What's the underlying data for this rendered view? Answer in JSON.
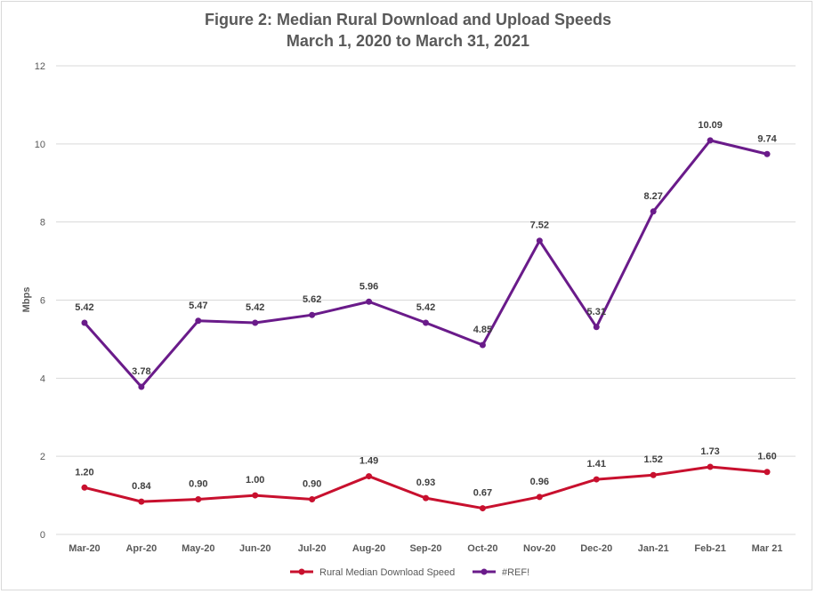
{
  "chart_data": {
    "type": "line",
    "title": "Figure 2: Median Rural Download and Upload Speeds",
    "subtitle": "March 1, 2020 to March 31, 2021",
    "xlabel": "",
    "ylabel": "Mbps",
    "ylim": [
      0,
      12
    ],
    "yticks": [
      0,
      2,
      4,
      6,
      8,
      10,
      12
    ],
    "grid": true,
    "legend_position": "bottom",
    "categories": [
      "Mar-20",
      "Apr-20",
      "May-20",
      "Jun-20",
      "Jul-20",
      "Aug-20",
      "Sep-20",
      "Oct-20",
      "Nov-20",
      "Dec-20",
      "Jan-21",
      "Feb-21",
      "Mar 21"
    ],
    "series": [
      {
        "name": "Rural Median Download Speed",
        "color": "#c8102e",
        "values": [
          1.2,
          0.84,
          0.9,
          1.0,
          0.9,
          1.49,
          0.93,
          0.67,
          0.96,
          1.41,
          1.52,
          1.73,
          1.6
        ],
        "labels": [
          "1.20",
          "0.84",
          "0.90",
          "1.00",
          "0.90",
          "1.49",
          "0.93",
          "0.67",
          "0.96",
          "1.41",
          "1.52",
          "1.73",
          "1.60"
        ]
      },
      {
        "name": "#REF!",
        "color": "#6a1b8a",
        "values": [
          5.42,
          3.78,
          5.47,
          5.42,
          5.62,
          5.96,
          5.42,
          4.85,
          7.52,
          5.31,
          8.27,
          10.09,
          9.74
        ],
        "labels": [
          "5.42",
          "3.78",
          "5.47",
          "5.42",
          "5.62",
          "5.96",
          "5.42",
          "4.85",
          "7.52",
          "5.31",
          "8.27",
          "10.09",
          "9.74"
        ]
      }
    ]
  }
}
